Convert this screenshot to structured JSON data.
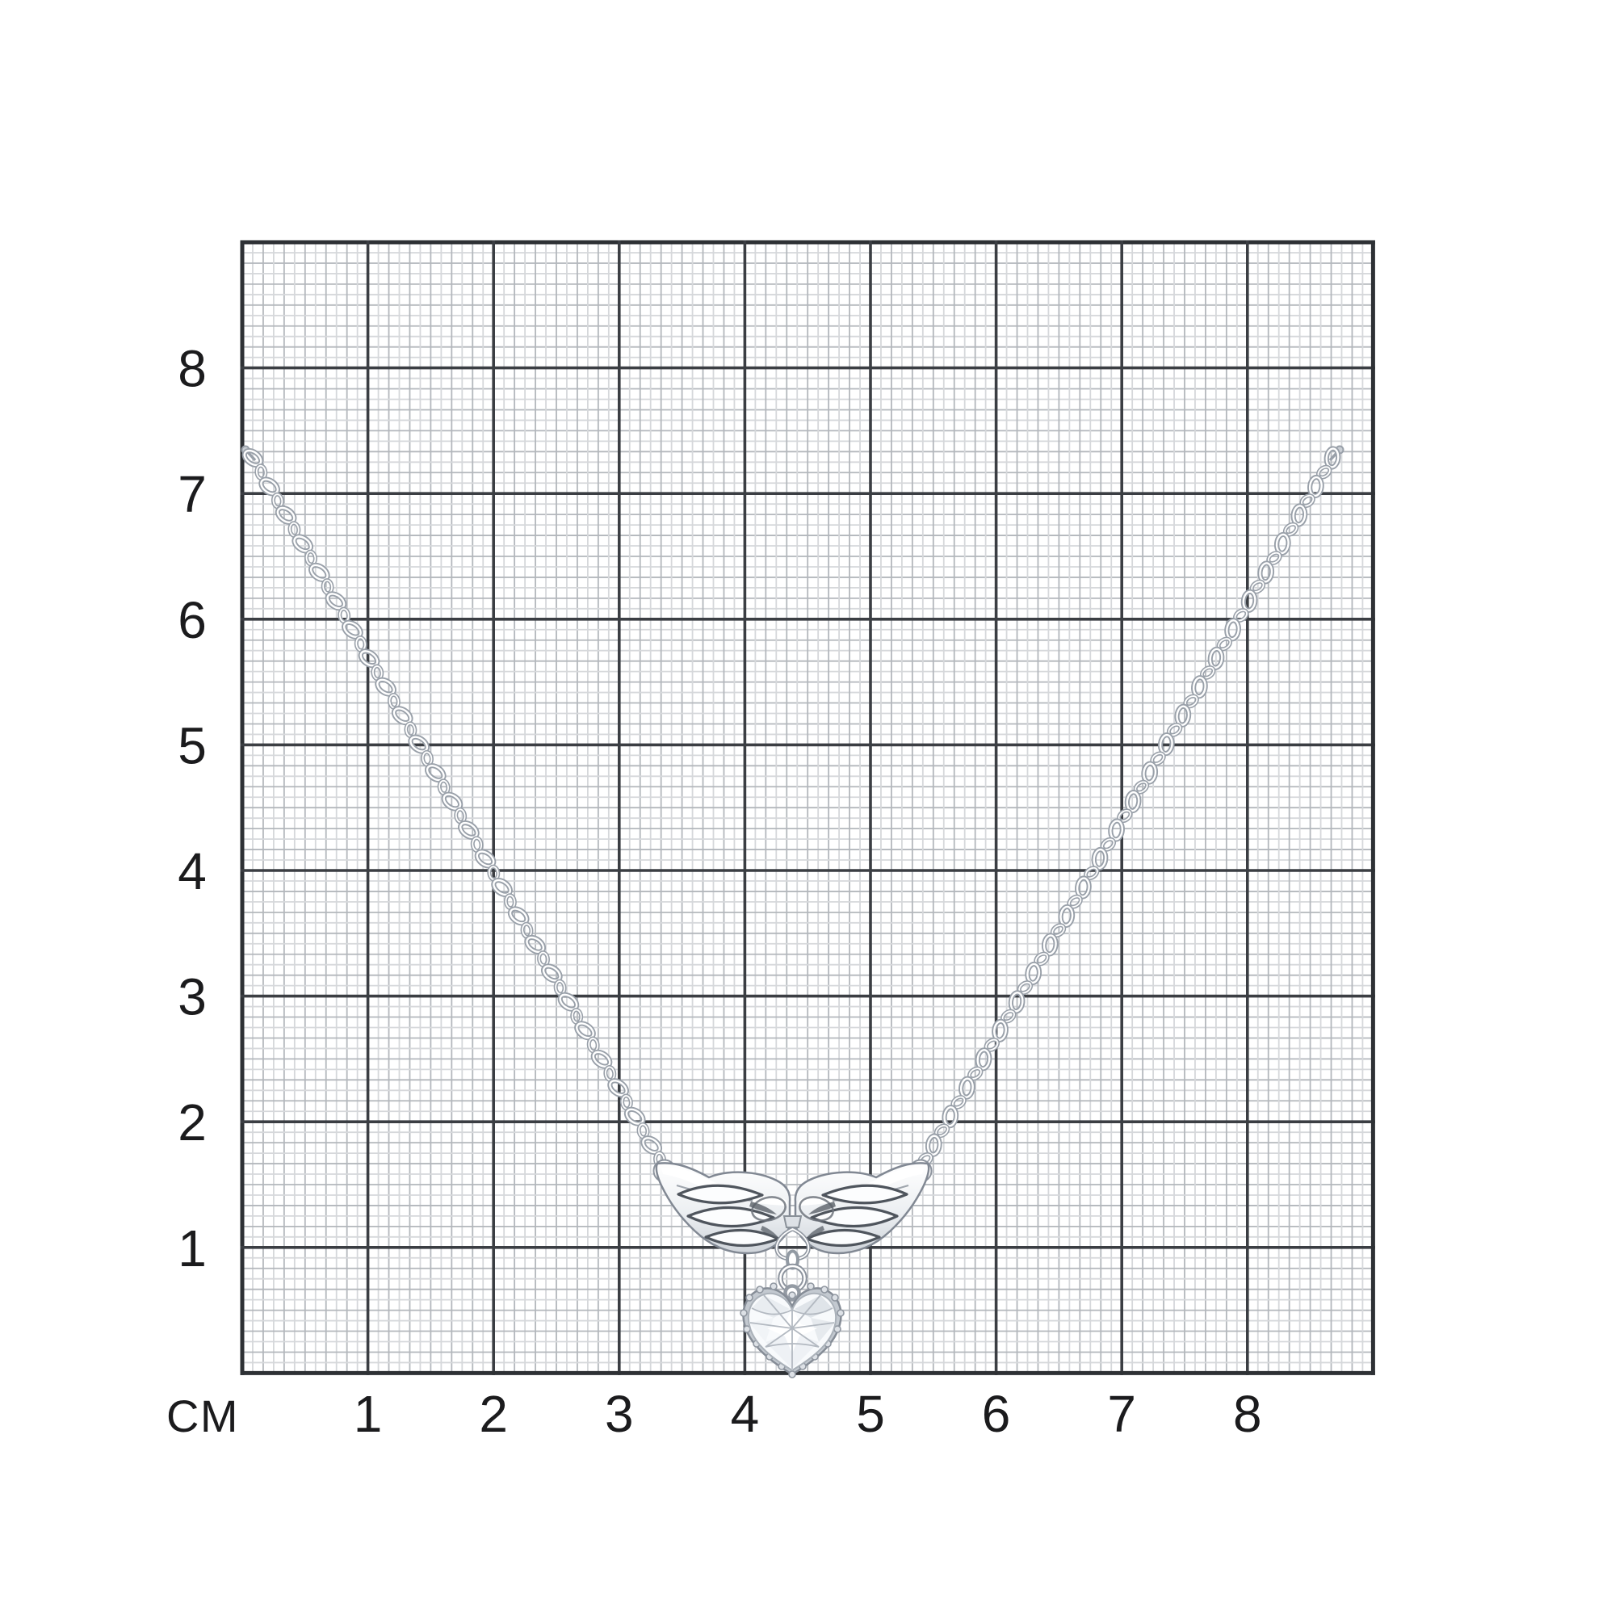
{
  "figure": {
    "name": "silver-chain-necklace-with-angel-wings-and-heart-pendant"
  },
  "ruler": {
    "unit_label": "СМ",
    "x_ticks": [
      "1",
      "2",
      "3",
      "4",
      "5",
      "6",
      "7",
      "8"
    ],
    "y_ticks": [
      "1",
      "2",
      "3",
      "4",
      "5",
      "6",
      "7",
      "8"
    ],
    "colors": {
      "background": "#ffffff",
      "grid_minor_light": "#d6d8db",
      "grid_minor_dark": "#b3b7bc",
      "grid_major": "#3b3e43",
      "grid_border": "#2e3135",
      "tick_label": "#1b1b1d"
    }
  },
  "necklace": {
    "chain_outline": "#99a0a9",
    "chain_highlight": "#ffffff",
    "metal_outline": "#818893",
    "metal_dark": "#565c64",
    "metal_mid": "#c9ced4",
    "metal_light": "#f6f8fa",
    "stone_fill": "#f8fafc",
    "stone_facet": "#b3b9c1",
    "setting_fill": "#c3c9d0"
  }
}
